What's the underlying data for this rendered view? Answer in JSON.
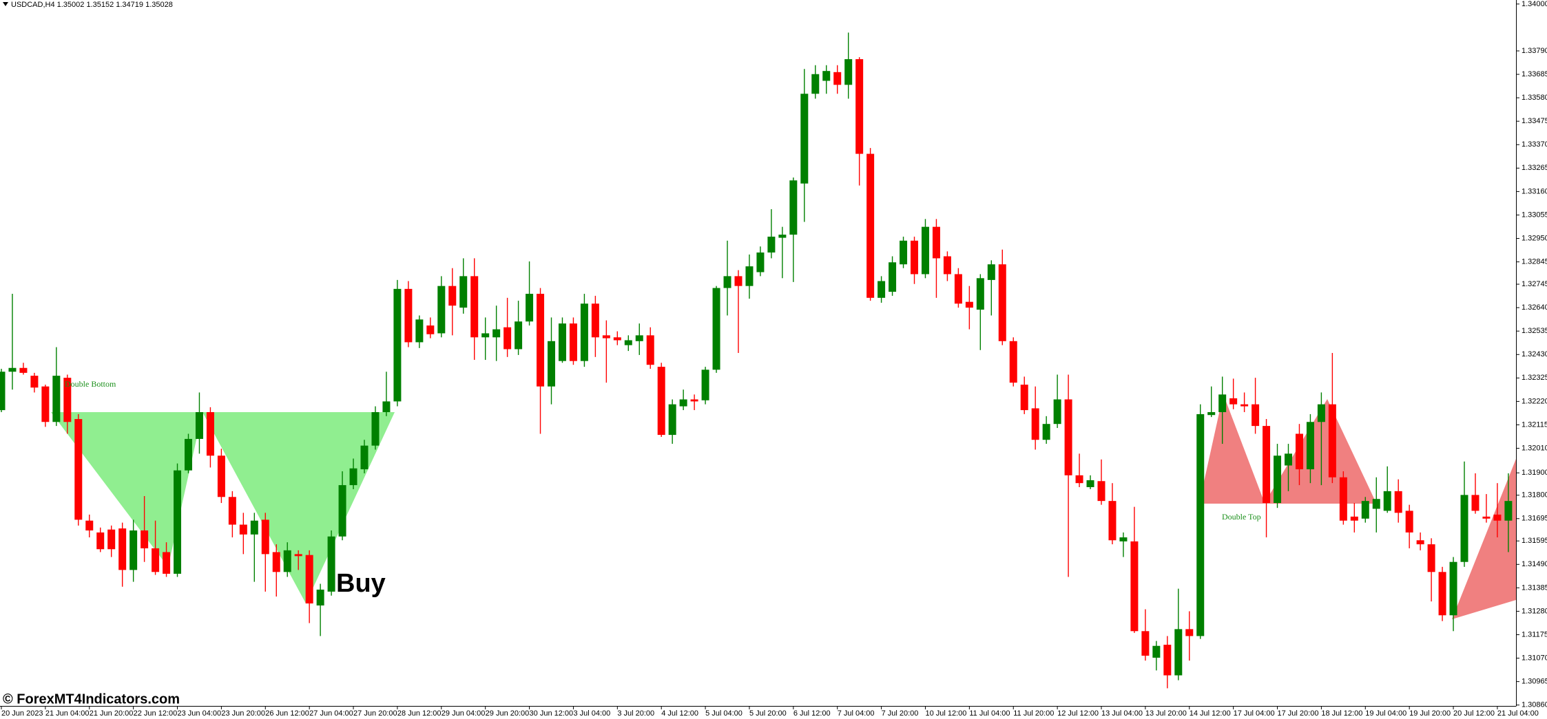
{
  "chart_data": {
    "type": "candlestick",
    "title": "USDCAD,H4 1.35002 1.35152 1.34719 1.35028",
    "watermark": "© ForexMT4Indicators.com",
    "annotations": [
      "Double Bottom",
      "Double Top",
      "Buy"
    ],
    "up_color": "#008000",
    "down_color": "#ff0000",
    "categories": [
      "20 Jun 2023",
      null,
      null,
      null,
      "21 Jun 04:00",
      null,
      null,
      null,
      "21 Jun 20:00",
      null,
      null,
      null,
      "22 Jun 12:00",
      null,
      null,
      null,
      "23 Jun 04:00",
      null,
      null,
      null,
      "23 Jun 20:00",
      null,
      null,
      null,
      "26 Jun 12:00",
      null,
      null,
      null,
      "27 Jun 04:00",
      null,
      null,
      null,
      "27 Jun 20:00",
      null,
      null,
      null,
      "28 Jun 12:00",
      null,
      null,
      null,
      "29 Jun 04:00",
      null,
      null,
      null,
      "29 Jun 20:00",
      null,
      null,
      null,
      "30 Jun 12:00",
      null,
      null,
      null,
      "3 Jul 04:00",
      null,
      null,
      null,
      "3 Jul 20:00",
      null,
      null,
      null,
      "4 Jul 12:00",
      null,
      null,
      null,
      "5 Jul 04:00",
      null,
      null,
      null,
      "5 Jul 20:00",
      null,
      null,
      null,
      "6 Jul 12:00",
      null,
      null,
      null,
      "7 Jul 04:00",
      null,
      null,
      null,
      "7 Jul 20:00",
      null,
      null,
      null,
      "10 Jul 12:00",
      null,
      null,
      null,
      "11 Jul 04:00",
      null,
      null,
      null,
      "11 Jul 20:00",
      null,
      null,
      null,
      "12 Jul 12:00",
      null,
      null,
      null,
      "13 Jul 04:00",
      null,
      null,
      null,
      "13 Jul 20:00",
      null,
      null,
      null,
      "14 Jul 12:00",
      null,
      null,
      null,
      "17 Jul 04:00",
      null,
      null,
      null,
      "17 Jul 20:00",
      null,
      null,
      null,
      "18 Jul 12:00",
      null,
      null,
      null,
      "19 Jul 04:00",
      null,
      null,
      null,
      "19 Jul 20:00",
      null,
      null,
      null,
      "20 Jul 12:00",
      null,
      null,
      null,
      "21 Jul 04:00",
      null
    ],
    "open": [
      1.32181,
      1.32353,
      1.3237,
      1.32335,
      1.32287,
      1.32128,
      1.32326,
      1.32141,
      1.31686,
      1.31633,
      1.31646,
      1.31651,
      1.31465,
      1.31642,
      1.31562,
      1.31545,
      1.31448,
      1.31911,
      1.32052,
      1.32172,
      1.31977,
      1.31792,
      1.31668,
      1.31624,
      1.3169,
      1.31545,
      1.31456,
      1.31536,
      1.31532,
      1.31306,
      1.31368,
      1.31615,
      1.31845,
      1.31916,
      1.32022,
      1.32172,
      1.3222,
      1.32724,
      1.32485,
      1.3256,
      1.32525,
      1.32737,
      1.3264,
      1.32781,
      1.32507,
      1.32507,
      1.32552,
      1.32454,
      1.32578,
      1.32702,
      1.32287,
      1.32401,
      1.32569,
      1.32401,
      1.32658,
      1.32516,
      1.32507,
      1.32472,
      1.3249,
      1.32516,
      1.32375,
      1.3207,
      1.32198,
      1.32229,
      1.32225,
      1.32362,
      1.32728,
      1.32781,
      1.32737,
      1.32799,
      1.32887,
      1.32953,
      1.32967,
      1.33196,
      1.33598,
      1.33656,
      1.33695,
      1.33638,
      1.33753,
      1.33329,
      1.32684,
      1.32711,
      1.32834,
      1.3294,
      1.3279,
      1.33002,
      1.3287,
      1.3279,
      1.32666,
      1.32631,
      1.32764,
      1.32834,
      1.3249,
      1.32295,
      1.32189,
      1.32048,
      1.32119,
      1.32229,
      1.31889,
      1.31836,
      1.31863,
      1.31774,
      1.31593,
      1.31593,
      1.31191,
      1.31072,
      1.3113,
      1.30993,
      1.312,
      1.31169,
      1.32159,
      1.32172,
      1.32234,
      1.32207,
      1.32207,
      1.3211,
      1.31765,
      1.31933,
      1.32075,
      1.31916,
      1.32128,
      1.32207,
      1.3188,
      1.31704,
      1.31695,
      1.31739,
      1.3173,
      1.31818,
      1.3173,
      1.31598,
      1.3158,
      1.31456,
      1.31262,
      1.31501,
      1.31801,
      1.31704,
      1.31713,
      1.31686
    ],
    "high": [
      1.32366,
      1.32702,
      1.32393,
      1.32348,
      1.32295,
      1.32463,
      1.3234,
      1.32163,
      1.31713,
      1.31655,
      1.31664,
      1.31677,
      1.3169,
      1.31796,
      1.31686,
      1.31589,
      1.31942,
      1.32075,
      1.3226,
      1.32194,
      1.32008,
      1.31818,
      1.31721,
      1.31721,
      1.31721,
      1.3158,
      1.31589,
      1.31553,
      1.31553,
      1.31403,
      1.31642,
      1.31907,
      1.31964,
      1.32048,
      1.32198,
      1.32353,
      1.32764,
      1.32759,
      1.32605,
      1.32596,
      1.32781,
      1.32817,
      1.32861,
      1.32861,
      1.32596,
      1.32649,
      1.32684,
      1.32671,
      1.32847,
      1.32728,
      1.32596,
      1.32596,
      1.32596,
      1.32702,
      1.32693,
      1.32583,
      1.32534,
      1.32516,
      1.32569,
      1.32552,
      1.32393,
      1.32229,
      1.32273,
      1.32251,
      1.32375,
      1.32737,
      1.3294,
      1.32808,
      1.32878,
      1.32914,
      1.33081,
      1.33002,
      1.33223,
      1.33709,
      1.33726,
      1.33726,
      1.33726,
      1.33872,
      1.33762,
      1.33355,
      1.32781,
      1.3287,
      1.32958,
      1.32958,
      1.33037,
      1.33037,
      1.32892,
      1.32817,
      1.32737,
      1.3279,
      1.32852,
      1.329,
      1.32507,
      1.32331,
      1.32287,
      1.32154,
      1.3234,
      1.3234,
      1.31986,
      1.31889,
      1.3196,
      1.31854,
      1.31633,
      1.31748,
      1.31289,
      1.31147,
      1.31169,
      1.31381,
      1.3128,
      1.32207,
      1.32287,
      1.32331,
      1.32322,
      1.3226,
      1.32326,
      1.32141,
      1.3203,
      1.3203,
      1.32119,
      1.32163,
      1.3226,
      1.32437,
      1.31907,
      1.31765,
      1.31792,
      1.3188,
      1.31929,
      1.31871,
      1.31757,
      1.31633,
      1.31607,
      1.31479,
      1.31523,
      1.31951,
      1.31898,
      1.31805,
      1.31854,
      1.31898
    ],
    "low": [
      1.32172,
      1.32273,
      1.3234,
      1.3226,
      1.32106,
      1.3211,
      1.32075,
      1.31664,
      1.31611,
      1.31545,
      1.31523,
      1.3139,
      1.31412,
      1.31501,
      1.31443,
      1.31434,
      1.31434,
      1.31898,
      1.31986,
      1.31924,
      1.31765,
      1.31611,
      1.31536,
      1.31412,
      1.31368,
      1.31346,
      1.31434,
      1.31465,
      1.31227,
      1.31169,
      1.3135,
      1.31598,
      1.31827,
      1.31898,
      1.32004,
      1.32154,
      1.32198,
      1.32463,
      1.32459,
      1.32503,
      1.32507,
      1.32516,
      1.32613,
      1.32406,
      1.32406,
      1.32401,
      1.32419,
      1.32428,
      1.3256,
      1.32075,
      1.32207,
      1.32393,
      1.32384,
      1.32375,
      1.32419,
      1.32304,
      1.32472,
      1.32446,
      1.32428,
      1.32366,
      1.32061,
      1.3203,
      1.32181,
      1.32181,
      1.32207,
      1.32348,
      1.32605,
      1.32437,
      1.3268,
      1.32781,
      1.32861,
      1.32772,
      1.32755,
      1.33024,
      1.33576,
      1.33598,
      1.33598,
      1.33576,
      1.33187,
      1.32671,
      1.32662,
      1.32693,
      1.32817,
      1.32746,
      1.32772,
      1.32684,
      1.32759,
      1.3264,
      1.32543,
      1.3245,
      1.32605,
      1.32472,
      1.32287,
      1.32163,
      1.32004,
      1.3203,
      1.32101,
      1.31434,
      1.31836,
      1.31827,
      1.31757,
      1.3158,
      1.31523,
      1.31183,
      1.31059,
      1.31015,
      1.30935,
      1.30971,
      1.31059,
      1.31156,
      1.3215,
      1.3203,
      1.32185,
      1.32172,
      1.32075,
      1.31611,
      1.31743,
      1.31818,
      1.31845,
      1.31854,
      1.31845,
      1.31854,
      1.31668,
      1.31633,
      1.31677,
      1.31633,
      1.31721,
      1.31677,
      1.31562,
      1.31553,
      1.31324,
      1.31236,
      1.31191,
      1.31479,
      1.31717,
      1.31677,
      1.31611,
      1.31545
    ],
    "close": [
      1.32353,
      1.3237,
      1.32348,
      1.32282,
      1.32128,
      1.32335,
      1.32128,
      1.3169,
      1.31642,
      1.31558,
      1.31558,
      1.31465,
      1.31642,
      1.31562,
      1.31456,
      1.31448,
      1.31911,
      1.32052,
      1.32172,
      1.31977,
      1.31792,
      1.31668,
      1.31624,
      1.31686,
      1.31536,
      1.31456,
      1.31553,
      1.31527,
      1.31315,
      1.31377,
      1.31615,
      1.31845,
      1.3192,
      1.32022,
      1.32172,
      1.3222,
      1.32724,
      1.32485,
      1.32587,
      1.32521,
      1.32737,
      1.32649,
      1.32781,
      1.32507,
      1.32525,
      1.32543,
      1.32454,
      1.32578,
      1.32702,
      1.32287,
      1.3249,
      1.32569,
      1.32401,
      1.32658,
      1.32507,
      1.32503,
      1.32494,
      1.32494,
      1.32516,
      1.32384,
      1.3207,
      1.32207,
      1.32229,
      1.3222,
      1.32362,
      1.32728,
      1.32781,
      1.32737,
      1.32825,
      1.32887,
      1.32958,
      1.32967,
      1.3321,
      1.33598,
      1.33686,
      1.337,
      1.33638,
      1.33753,
      1.33329,
      1.32684,
      1.32759,
      1.32843,
      1.3294,
      1.3279,
      1.33002,
      1.32861,
      1.3279,
      1.32658,
      1.3264,
      1.32772,
      1.32834,
      1.3249,
      1.32304,
      1.32181,
      1.32048,
      1.32119,
      1.32229,
      1.31889,
      1.31854,
      1.31867,
      1.31774,
      1.31598,
      1.31611,
      1.31191,
      1.31081,
      1.31125,
      1.30993,
      1.312,
      1.31169,
      1.32163,
      1.32172,
      1.32251,
      1.32207,
      1.32198,
      1.3211,
      1.31765,
      1.31977,
      1.31986,
      1.31916,
      1.32128,
      1.32207,
      1.3188,
      1.31686,
      1.31686,
      1.31774,
      1.31783,
      1.31818,
      1.31721,
      1.31633,
      1.3158,
      1.31456,
      1.31262,
      1.31501,
      1.31801,
      1.3173,
      1.31695,
      1.31686,
      1.31774
    ],
    "ylim": [
      1.30856,
      1.34018
    ],
    "yticks": [
      {
        "value": 1.34,
        "label": "1.34000"
      },
      {
        "value": 1.3379,
        "label": "1.33790"
      },
      1.33685,
      {
        "value": 1.3358,
        "label": "1.33580"
      },
      1.33475,
      {
        "value": 1.3337,
        "label": "1.33370"
      },
      1.33265,
      {
        "value": 1.3316,
        "label": "1.33160"
      },
      1.33055,
      {
        "value": 1.3295,
        "label": "1.32950"
      },
      1.32845,
      1.32745,
      {
        "value": 1.3264,
        "label": "1.32640"
      },
      1.32535,
      {
        "value": 1.3243,
        "label": "1.32430"
      },
      1.32325,
      {
        "value": 1.3222,
        "label": "1.32220"
      },
      1.32115,
      {
        "value": 1.3201,
        "label": "1.32010"
      },
      {
        "value": 1.319,
        "label": "1.31900"
      },
      {
        "value": 1.318,
        "label": "1.31800"
      },
      1.31695,
      1.31595,
      {
        "value": 1.3149,
        "label": "1.31490"
      },
      1.31385,
      {
        "value": 1.3128,
        "label": "1.31280"
      },
      1.31175,
      {
        "value": 1.3107,
        "label": "1.31070"
      },
      1.30965,
      {
        "value": 1.3086,
        "label": "1.30860"
      }
    ]
  }
}
